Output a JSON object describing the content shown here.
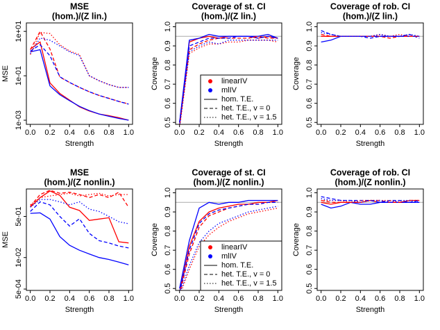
{
  "chart_data": [
    {
      "type": "line",
      "title": "MSE",
      "subtitle": "(hom.)/(Z lin.)",
      "xlabel": "Strength",
      "ylabel": "MSE",
      "log_y": true,
      "x": [
        0,
        0.1,
        0.2,
        0.3,
        0.4,
        0.5,
        0.6,
        0.7,
        0.8,
        0.9,
        1
      ],
      "xlim": [
        -0.04,
        1.04
      ],
      "xticks": [
        {
          "value": 0,
          "label": "0.0"
        },
        {
          "value": 0.2,
          "label": "0.2"
        },
        {
          "value": 0.4,
          "label": "0.4"
        },
        {
          "value": 0.6,
          "label": "0.6"
        },
        {
          "value": 0.8,
          "label": "0.8"
        },
        {
          "value": 1,
          "label": "1.0"
        }
      ],
      "ylim": [
        0.00065,
        24
      ],
      "yticks": [
        {
          "value": 0.001,
          "label": "1e-03"
        },
        {
          "value": 0.1,
          "label": "1e-01"
        },
        {
          "value": 10,
          "label": "1e+01"
        }
      ],
      "series": [
        {
          "color": "#ff0000",
          "linetype": "solid",
          "values": [
            1.6,
            3.3,
            0.048,
            0.016,
            0.008,
            0.004,
            0.0026,
            0.0019,
            0.0016,
            0.0013,
            0.001
          ]
        },
        {
          "color": "#0000ff",
          "linetype": "solid",
          "values": [
            1.2,
            1.5,
            0.035,
            0.014,
            0.0075,
            0.0042,
            0.0027,
            0.0019,
            0.0015,
            0.0012,
            0.001
          ]
        },
        {
          "color": "#ff0000",
          "linetype": "dashed",
          "values": [
            1.5,
            10,
            1.6,
            0.087,
            0.05,
            0.03,
            0.019,
            0.013,
            0.0097,
            0.007,
            0.0054
          ]
        },
        {
          "color": "#0000ff",
          "linetype": "dashed",
          "values": [
            1.3,
            2.5,
            0.8,
            0.09,
            0.05,
            0.03,
            0.019,
            0.013,
            0.0095,
            0.007,
            0.0053
          ]
        },
        {
          "color": "#ff0000",
          "linetype": "dotted",
          "values": [
            0.9,
            9,
            8,
            2.5,
            1.3,
            0.9,
            0.1,
            0.06,
            0.04,
            0.03,
            0.03
          ]
        },
        {
          "color": "#0000ff",
          "linetype": "dotted",
          "values": [
            1.0,
            5,
            4,
            2.2,
            1.2,
            0.8,
            0.1,
            0.06,
            0.04,
            0.03,
            0.03
          ]
        }
      ]
    },
    {
      "type": "line",
      "title": "Coverage of st. CI",
      "subtitle": "(hom.)/(Z lin.)",
      "xlabel": "Strength",
      "ylabel": "Coverage",
      "hline": 0.95,
      "x": [
        0,
        0.1,
        0.2,
        0.3,
        0.4,
        0.5,
        0.6,
        0.7,
        0.8,
        0.9,
        1
      ],
      "xlim": [
        -0.04,
        1.04
      ],
      "xticks": [
        {
          "value": 0,
          "label": "0.0"
        },
        {
          "value": 0.2,
          "label": "0.2"
        },
        {
          "value": 0.4,
          "label": "0.4"
        },
        {
          "value": 0.6,
          "label": "0.6"
        },
        {
          "value": 0.8,
          "label": "0.8"
        },
        {
          "value": 1,
          "label": "1.0"
        }
      ],
      "ylim": [
        0.49,
        1.02
      ],
      "yticks": [
        0.5,
        0.6,
        0.7,
        0.8,
        0.9,
        {
          "value": 1,
          "label": "1.0"
        }
      ],
      "legend": {
        "position": "bottomright",
        "colors": [
          {
            "label": "linearIV",
            "color": "#ff0000"
          },
          {
            "label": "mlIV",
            "color": "#0000ff"
          }
        ],
        "linetypes": [
          {
            "label": "hom. T.E.",
            "linetype": "solid"
          },
          {
            "label": "het. T.E., v = 0",
            "linetype": "dashed"
          },
          {
            "label": "het. T.E., v = 1.5",
            "linetype": "dotted"
          }
        ]
      },
      "series": [
        {
          "color": "#ff0000",
          "linetype": "solid",
          "values": [
            0.48,
            0.92,
            0.94,
            0.95,
            0.94,
            0.95,
            0.95,
            0.95,
            0.94,
            0.95,
            0.94
          ]
        },
        {
          "color": "#0000ff",
          "linetype": "solid",
          "values": [
            0.5,
            0.93,
            0.94,
            0.96,
            0.95,
            0.95,
            0.95,
            0.95,
            0.95,
            0.96,
            0.94
          ]
        },
        {
          "color": "#ff0000",
          "linetype": "dashed",
          "values": [
            0.48,
            0.88,
            0.91,
            0.93,
            0.94,
            0.94,
            0.94,
            0.94,
            0.95,
            0.94,
            0.94
          ]
        },
        {
          "color": "#0000ff",
          "linetype": "dashed",
          "values": [
            0.5,
            0.9,
            0.92,
            0.94,
            0.94,
            0.94,
            0.95,
            0.95,
            0.94,
            0.95,
            0.94
          ]
        },
        {
          "color": "#ff0000",
          "linetype": "dotted",
          "values": [
            0.47,
            0.86,
            0.89,
            0.91,
            0.91,
            0.92,
            0.92,
            0.93,
            0.93,
            0.93,
            0.92
          ]
        },
        {
          "color": "#0000ff",
          "linetype": "dotted",
          "values": [
            0.48,
            0.87,
            0.9,
            0.92,
            0.91,
            0.93,
            0.93,
            0.93,
            0.93,
            0.93,
            0.93
          ]
        }
      ]
    },
    {
      "type": "line",
      "title": "Coverage of rob. CI",
      "subtitle": "(hom.)/(Z lin.)",
      "xlabel": "Strength",
      "ylabel": "Coverage",
      "hline": 0.95,
      "x": [
        0,
        0.1,
        0.2,
        0.3,
        0.4,
        0.5,
        0.6,
        0.7,
        0.8,
        0.9,
        1
      ],
      "xlim": [
        -0.04,
        1.04
      ],
      "xticks": [
        {
          "value": 0,
          "label": "0.0"
        },
        {
          "value": 0.2,
          "label": "0.2"
        },
        {
          "value": 0.4,
          "label": "0.4"
        },
        {
          "value": 0.6,
          "label": "0.6"
        },
        {
          "value": 0.8,
          "label": "0.8"
        },
        {
          "value": 1,
          "label": "1.0"
        }
      ],
      "ylim": [
        0.49,
        1.02
      ],
      "yticks": [
        0.5,
        0.6,
        0.7,
        0.8,
        0.9,
        {
          "value": 1,
          "label": "1.0"
        }
      ],
      "series": [
        {
          "color": "#ff0000",
          "linetype": "solid",
          "values": [
            0.95,
            0.95,
            0.95,
            0.95,
            0.95,
            0.95,
            0.95,
            0.95,
            0.95,
            0.95,
            0.95
          ]
        },
        {
          "color": "#0000ff",
          "linetype": "solid",
          "values": [
            0.92,
            0.93,
            0.95,
            0.95,
            0.95,
            0.95,
            0.95,
            0.95,
            0.95,
            0.95,
            0.95
          ]
        },
        {
          "color": "#ff0000",
          "linetype": "dashed",
          "values": [
            0.96,
            0.95,
            0.95,
            0.95,
            0.95,
            0.95,
            0.95,
            0.94,
            0.95,
            0.95,
            0.95
          ]
        },
        {
          "color": "#0000ff",
          "linetype": "dashed",
          "values": [
            0.98,
            0.96,
            0.95,
            0.95,
            0.95,
            0.94,
            0.95,
            0.95,
            0.95,
            0.96,
            0.94
          ]
        },
        {
          "color": "#ff0000",
          "linetype": "dotted",
          "values": [
            0.95,
            0.95,
            0.95,
            0.95,
            0.95,
            0.95,
            0.96,
            0.95,
            0.96,
            0.95,
            0.95
          ]
        },
        {
          "color": "#0000ff",
          "linetype": "dotted",
          "values": [
            0.97,
            0.96,
            0.95,
            0.95,
            0.95,
            0.95,
            0.96,
            0.95,
            0.95,
            0.96,
            0.95
          ]
        }
      ]
    },
    {
      "type": "line",
      "title": "MSE",
      "subtitle": "(hom.)/(Z nonlin.)",
      "xlabel": "Strength",
      "ylabel": "MSE",
      "log_y": true,
      "x": [
        0,
        0.1,
        0.2,
        0.3,
        0.4,
        0.5,
        0.6,
        0.7,
        0.8,
        0.9,
        1
      ],
      "xlim": [
        -0.04,
        1.04
      ],
      "xticks": [
        {
          "value": 0,
          "label": "0.0"
        },
        {
          "value": 0.2,
          "label": "0.2"
        },
        {
          "value": 0.4,
          "label": "0.4"
        },
        {
          "value": 0.6,
          "label": "0.6"
        },
        {
          "value": 0.8,
          "label": "0.8"
        },
        {
          "value": 1,
          "label": "1.0"
        }
      ],
      "ylim": [
        0.00044,
        6.8
      ],
      "yticks": [
        {
          "value": 0.0005,
          "label": "5e-04"
        },
        {
          "value": 0.01,
          "label": "1e-02"
        },
        {
          "value": 0.5,
          "label": "5e-01"
        }
      ],
      "series": [
        {
          "color": "#ff0000",
          "linetype": "solid",
          "values": [
            1.2,
            3,
            5.6,
            3.7,
            1.2,
            0.88,
            0.34,
            0.39,
            0.44,
            0.045,
            0.04
          ]
        },
        {
          "color": "#0000ff",
          "linetype": "solid",
          "values": [
            0.67,
            0.7,
            0.39,
            0.073,
            0.032,
            0.02,
            0.014,
            0.01,
            0.0083,
            0.0065,
            0.005
          ]
        },
        {
          "color": "#ff0000",
          "linetype": "dashed",
          "values": [
            1.3,
            4,
            6,
            4.5,
            5,
            4,
            3,
            4,
            3,
            5,
            1.2
          ]
        },
        {
          "color": "#0000ff",
          "linetype": "dashed",
          "values": [
            0.8,
            2,
            1.5,
            0.5,
            0.2,
            0.4,
            0.1,
            0.05,
            0.04,
            0.03,
            0.025
          ]
        },
        {
          "color": "#ff0000",
          "linetype": "dotted",
          "values": [
            1.5,
            3,
            3.5,
            4,
            4.5,
            3.5,
            4,
            4.5,
            3.5,
            4,
            4
          ]
        },
        {
          "color": "#0000ff",
          "linetype": "dotted",
          "values": [
            1.2,
            2.5,
            2.5,
            2,
            1.5,
            2,
            1,
            0.8,
            0.5,
            0.3,
            0.25
          ]
        }
      ]
    },
    {
      "type": "line",
      "title": "Coverage of st. CI",
      "subtitle": "(hom.)/(Z nonlin.)",
      "xlabel": "Strength",
      "ylabel": "Coverage",
      "hline": 0.95,
      "x": [
        0,
        0.1,
        0.2,
        0.3,
        0.4,
        0.5,
        0.6,
        0.7,
        0.8,
        0.9,
        1
      ],
      "xlim": [
        -0.04,
        1.04
      ],
      "xticks": [
        {
          "value": 0,
          "label": "0.0"
        },
        {
          "value": 0.2,
          "label": "0.2"
        },
        {
          "value": 0.4,
          "label": "0.4"
        },
        {
          "value": 0.6,
          "label": "0.6"
        },
        {
          "value": 0.8,
          "label": "0.8"
        },
        {
          "value": 1,
          "label": "1.0"
        }
      ],
      "ylim": [
        0.49,
        1.02
      ],
      "yticks": [
        0.5,
        0.6,
        0.7,
        0.8,
        0.9,
        {
          "value": 1,
          "label": "1.0"
        }
      ],
      "legend": {
        "position": "bottomright",
        "colors": [
          {
            "label": "linearIV",
            "color": "#ff0000"
          },
          {
            "label": "mlIV",
            "color": "#0000ff"
          }
        ],
        "linetypes": [
          {
            "label": "hom. T.E.",
            "linetype": "solid"
          },
          {
            "label": "het. T.E., v = 0",
            "linetype": "dashed"
          },
          {
            "label": "het. T.E., v = 1.5",
            "linetype": "dotted"
          }
        ]
      },
      "series": [
        {
          "color": "#ff0000",
          "linetype": "solid",
          "values": [
            0.48,
            0.72,
            0.85,
            0.9,
            0.92,
            0.93,
            0.94,
            0.94,
            0.95,
            0.95,
            0.96
          ]
        },
        {
          "color": "#0000ff",
          "linetype": "solid",
          "values": [
            0.5,
            0.75,
            0.92,
            0.95,
            0.94,
            0.95,
            0.95,
            0.96,
            0.96,
            0.96,
            0.96
          ]
        },
        {
          "color": "#ff0000",
          "linetype": "dashed",
          "values": [
            0.47,
            0.68,
            0.82,
            0.88,
            0.9,
            0.92,
            0.93,
            0.94,
            0.94,
            0.95,
            0.95
          ]
        },
        {
          "color": "#0000ff",
          "linetype": "dashed",
          "values": [
            0.48,
            0.7,
            0.84,
            0.89,
            0.91,
            0.92,
            0.93,
            0.94,
            0.94,
            0.95,
            0.95
          ]
        },
        {
          "color": "#ff0000",
          "linetype": "dotted",
          "values": [
            0.46,
            0.6,
            0.72,
            0.78,
            0.82,
            0.85,
            0.87,
            0.89,
            0.9,
            0.91,
            0.92
          ]
        },
        {
          "color": "#0000ff",
          "linetype": "dotted",
          "values": [
            0.47,
            0.62,
            0.74,
            0.8,
            0.84,
            0.86,
            0.88,
            0.9,
            0.91,
            0.92,
            0.93
          ]
        }
      ]
    },
    {
      "type": "line",
      "title": "Coverage of rob. CI",
      "subtitle": "(hom.)/(Z nonlin.)",
      "xlabel": "Strength",
      "ylabel": "Coverage",
      "hline": 0.95,
      "x": [
        0,
        0.1,
        0.2,
        0.3,
        0.4,
        0.5,
        0.6,
        0.7,
        0.8,
        0.9,
        1
      ],
      "xlim": [
        -0.04,
        1.04
      ],
      "xticks": [
        {
          "value": 0,
          "label": "0.0"
        },
        {
          "value": 0.2,
          "label": "0.2"
        },
        {
          "value": 0.4,
          "label": "0.4"
        },
        {
          "value": 0.6,
          "label": "0.6"
        },
        {
          "value": 0.8,
          "label": "0.8"
        },
        {
          "value": 1,
          "label": "1.0"
        }
      ],
      "ylim": [
        0.49,
        1.02
      ],
      "yticks": [
        0.5,
        0.6,
        0.7,
        0.8,
        0.9,
        {
          "value": 1,
          "label": "1.0"
        }
      ],
      "series": [
        {
          "color": "#ff0000",
          "linetype": "solid",
          "values": [
            0.95,
            0.94,
            0.95,
            0.95,
            0.95,
            0.96,
            0.95,
            0.95,
            0.95,
            0.96,
            0.96
          ]
        },
        {
          "color": "#0000ff",
          "linetype": "solid",
          "values": [
            0.94,
            0.92,
            0.93,
            0.95,
            0.94,
            0.94,
            0.95,
            0.95,
            0.95,
            0.95,
            0.95
          ]
        },
        {
          "color": "#ff0000",
          "linetype": "dashed",
          "values": [
            0.96,
            0.95,
            0.95,
            0.95,
            0.95,
            0.96,
            0.96,
            0.95,
            0.95,
            0.96,
            0.96
          ]
        },
        {
          "color": "#0000ff",
          "linetype": "dashed",
          "values": [
            0.98,
            0.97,
            0.96,
            0.96,
            0.96,
            0.96,
            0.95,
            0.96,
            0.96,
            0.95,
            0.96
          ]
        },
        {
          "color": "#ff0000",
          "linetype": "dotted",
          "values": [
            0.96,
            0.96,
            0.96,
            0.95,
            0.96,
            0.96,
            0.96,
            0.96,
            0.95,
            0.96,
            0.96
          ]
        },
        {
          "color": "#0000ff",
          "linetype": "dotted",
          "values": [
            0.97,
            0.96,
            0.96,
            0.96,
            0.95,
            0.96,
            0.96,
            0.95,
            0.96,
            0.96,
            0.95
          ]
        }
      ]
    }
  ]
}
